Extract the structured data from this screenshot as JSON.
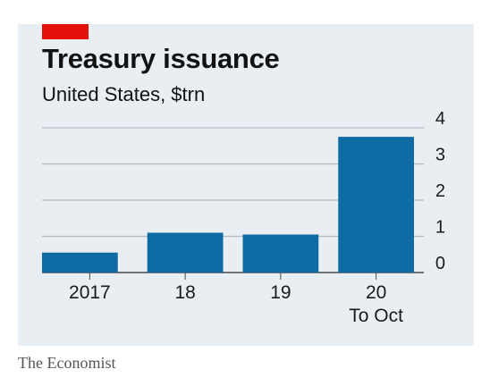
{
  "header": {
    "title": "Treasury issuance",
    "subtitle": "United States, $trn"
  },
  "footer": {
    "source": "The Economist"
  },
  "colors": {
    "bar": "#0f6ba3",
    "grid": "#b4bcc4",
    "baseline": "#4a4a4a",
    "background": "#e9eef2",
    "accent": "#e3120b"
  },
  "chart_data": {
    "type": "bar",
    "title": "Treasury issuance",
    "subtitle": "United States, $trn",
    "xlabel": "",
    "ylabel": "",
    "categories": [
      "2017",
      "18",
      "19",
      "20\nTo Oct"
    ],
    "values": [
      0.55,
      1.1,
      1.05,
      3.75
    ],
    "ylim": [
      0,
      4
    ],
    "yticks": [
      0,
      1,
      2,
      3,
      4
    ],
    "grid": true,
    "y_axis_position": "right"
  }
}
